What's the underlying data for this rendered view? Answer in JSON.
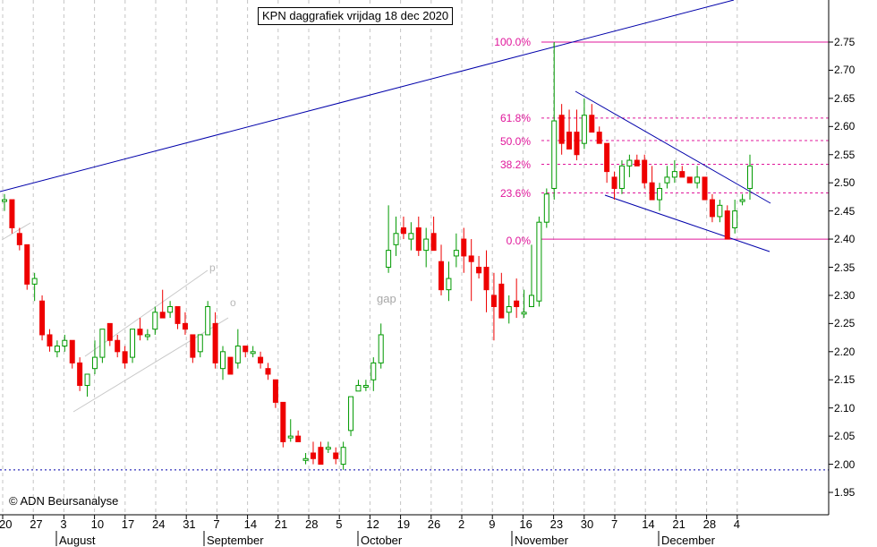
{
  "header": {
    "title": "KPN daggrafiek vrijdag 18 dec 2020"
  },
  "footer": {
    "copyright": "© ADN Beursanalyse"
  },
  "annotations": {
    "gap": "gap",
    "channel_upper": "p",
    "channel_lower": "o"
  },
  "colors": {
    "up": "#009900",
    "down": "#ee0000",
    "trend": "#0000aa",
    "fib": "#e0179b",
    "channel": "#c8c8c8",
    "support": "#0000aa"
  },
  "chart_data": {
    "type": "candlestick",
    "title": "KPN daggrafiek vrijdag 18 dec 2020",
    "y_ticks": [
      "2.75",
      "2.70",
      "2.65",
      "2.60",
      "2.55",
      "2.50",
      "2.45",
      "2.40",
      "2.35",
      "2.30",
      "2.25",
      "2.20",
      "2.15",
      "2.10",
      "2.05",
      "2.00",
      "1.95"
    ],
    "ylim": [
      1.93,
      2.79
    ],
    "x_ticks": [
      "20",
      "27",
      "3",
      "10",
      "17",
      "24",
      "31",
      "7",
      "14",
      "21",
      "28",
      "5",
      "12",
      "19",
      "26",
      "2",
      "9",
      "16",
      "23",
      "30",
      "7",
      "14",
      "21",
      "28",
      "4"
    ],
    "months": [
      "August",
      "September",
      "October",
      "November",
      "December"
    ],
    "fibonacci": [
      {
        "label": "100.0%",
        "value": 2.75
      },
      {
        "label": "61.8%",
        "value": 2.615
      },
      {
        "label": "50.0%",
        "value": 2.575
      },
      {
        "label": "38.2%",
        "value": 2.533
      },
      {
        "label": "23.6%",
        "value": 2.482
      },
      {
        "label": "0.0%",
        "value": 2.4
      }
    ],
    "support_level": 1.99,
    "candles": [
      [
        2.47,
        2.48,
        2.45,
        2.47
      ],
      [
        2.47,
        2.47,
        2.41,
        2.42
      ],
      [
        2.41,
        2.42,
        2.38,
        2.39
      ],
      [
        2.39,
        2.39,
        2.31,
        2.32
      ],
      [
        2.32,
        2.34,
        2.29,
        2.33
      ],
      [
        2.29,
        2.3,
        2.22,
        2.23
      ],
      [
        2.23,
        2.24,
        2.2,
        2.21
      ],
      [
        2.2,
        2.22,
        2.19,
        2.21
      ],
      [
        2.21,
        2.23,
        2.2,
        2.22
      ],
      [
        2.22,
        2.22,
        2.17,
        2.18
      ],
      [
        2.18,
        2.19,
        2.13,
        2.14
      ],
      [
        2.14,
        2.16,
        2.12,
        2.16
      ],
      [
        2.17,
        2.22,
        2.16,
        2.19
      ],
      [
        2.19,
        2.24,
        2.18,
        2.24
      ],
      [
        2.25,
        2.25,
        2.21,
        2.22
      ],
      [
        2.22,
        2.23,
        2.19,
        2.2
      ],
      [
        2.2,
        2.21,
        2.17,
        2.18
      ],
      [
        2.19,
        2.24,
        2.18,
        2.24
      ],
      [
        2.24,
        2.26,
        2.22,
        2.23
      ],
      [
        2.23,
        2.24,
        2.22,
        2.23
      ],
      [
        2.24,
        2.28,
        2.23,
        2.27
      ],
      [
        2.27,
        2.31,
        2.26,
        2.26
      ],
      [
        2.27,
        2.29,
        2.26,
        2.28
      ],
      [
        2.28,
        2.28,
        2.24,
        2.25
      ],
      [
        2.25,
        2.27,
        2.23,
        2.24
      ],
      [
        2.23,
        2.23,
        2.18,
        2.19
      ],
      [
        2.2,
        2.23,
        2.19,
        2.23
      ],
      [
        2.23,
        2.29,
        2.23,
        2.28
      ],
      [
        2.25,
        2.27,
        2.17,
        2.18
      ],
      [
        2.17,
        2.21,
        2.15,
        2.2
      ],
      [
        2.19,
        2.19,
        2.16,
        2.16
      ],
      [
        2.18,
        2.24,
        2.17,
        2.21
      ],
      [
        2.21,
        2.21,
        2.19,
        2.2
      ],
      [
        2.2,
        2.21,
        2.19,
        2.2
      ],
      [
        2.19,
        2.2,
        2.17,
        2.18
      ],
      [
        2.17,
        2.18,
        2.15,
        2.16
      ],
      [
        2.15,
        2.15,
        2.1,
        2.11
      ],
      [
        2.11,
        2.11,
        2.03,
        2.04
      ],
      [
        2.05,
        2.08,
        2.04,
        2.05
      ],
      [
        2.05,
        2.06,
        2.04,
        2.04
      ],
      [
        2.01,
        2.02,
        2.0,
        2.01
      ],
      [
        2.02,
        2.04,
        2.0,
        2.01
      ],
      [
        2.03,
        2.04,
        2.0,
        2.0
      ],
      [
        2.03,
        2.04,
        2.02,
        2.03
      ],
      [
        2.02,
        2.03,
        2.0,
        2.01
      ],
      [
        2.0,
        2.04,
        1.99,
        2.03
      ],
      [
        2.06,
        2.12,
        2.05,
        2.12
      ],
      [
        2.13,
        2.15,
        2.13,
        2.14
      ],
      [
        2.14,
        2.15,
        2.13,
        2.14
      ],
      [
        2.15,
        2.19,
        2.13,
        2.18
      ],
      [
        2.18,
        2.25,
        2.17,
        2.23
      ],
      [
        2.35,
        2.46,
        2.34,
        2.38
      ],
      [
        2.39,
        2.44,
        2.37,
        2.41
      ],
      [
        2.42,
        2.44,
        2.4,
        2.41
      ],
      [
        2.4,
        2.43,
        2.38,
        2.41
      ],
      [
        2.42,
        2.44,
        2.37,
        2.38
      ],
      [
        2.38,
        2.42,
        2.35,
        2.4
      ],
      [
        2.41,
        2.44,
        2.38,
        2.38
      ],
      [
        2.36,
        2.39,
        2.3,
        2.31
      ],
      [
        2.31,
        2.36,
        2.29,
        2.33
      ],
      [
        2.37,
        2.41,
        2.35,
        2.38
      ],
      [
        2.4,
        2.42,
        2.34,
        2.37
      ],
      [
        2.37,
        2.4,
        2.29,
        2.36
      ],
      [
        2.35,
        2.37,
        2.33,
        2.34
      ],
      [
        2.35,
        2.38,
        2.27,
        2.31
      ],
      [
        2.3,
        2.34,
        2.22,
        2.28
      ],
      [
        2.32,
        2.34,
        2.26,
        2.26
      ],
      [
        2.27,
        2.3,
        2.25,
        2.28
      ],
      [
        2.29,
        2.33,
        2.26,
        2.28
      ],
      [
        2.27,
        2.31,
        2.26,
        2.27
      ],
      [
        2.28,
        2.39,
        2.28,
        2.3
      ],
      [
        2.29,
        2.44,
        2.28,
        2.43
      ],
      [
        2.43,
        2.49,
        2.42,
        2.48
      ],
      [
        2.49,
        2.75,
        2.47,
        2.61
      ],
      [
        2.62,
        2.64,
        2.55,
        2.57
      ],
      [
        2.59,
        2.63,
        2.56,
        2.56
      ],
      [
        2.59,
        2.63,
        2.54,
        2.55
      ],
      [
        2.57,
        2.65,
        2.56,
        2.62
      ],
      [
        2.62,
        2.64,
        2.59,
        2.59
      ],
      [
        2.59,
        2.6,
        2.57,
        2.57
      ],
      [
        2.57,
        2.57,
        2.5,
        2.52
      ],
      [
        2.51,
        2.52,
        2.47,
        2.49
      ],
      [
        2.49,
        2.54,
        2.48,
        2.53
      ],
      [
        2.53,
        2.55,
        2.51,
        2.54
      ],
      [
        2.54,
        2.55,
        2.53,
        2.53
      ],
      [
        2.54,
        2.55,
        2.49,
        2.5
      ],
      [
        2.5,
        2.53,
        2.47,
        2.47
      ],
      [
        2.47,
        2.5,
        2.45,
        2.49
      ],
      [
        2.5,
        2.53,
        2.49,
        2.51
      ],
      [
        2.51,
        2.54,
        2.5,
        2.52
      ],
      [
        2.52,
        2.53,
        2.51,
        2.51
      ],
      [
        2.51,
        2.51,
        2.5,
        2.5
      ],
      [
        2.5,
        2.53,
        2.49,
        2.51
      ],
      [
        2.51,
        2.51,
        2.47,
        2.47
      ],
      [
        2.47,
        2.48,
        2.43,
        2.44
      ],
      [
        2.44,
        2.47,
        2.43,
        2.46
      ],
      [
        2.45,
        2.46,
        2.4,
        2.4
      ],
      [
        2.42,
        2.47,
        2.41,
        2.45
      ],
      [
        2.47,
        2.48,
        2.46,
        2.47
      ],
      [
        2.49,
        2.55,
        2.47,
        2.53
      ]
    ]
  }
}
